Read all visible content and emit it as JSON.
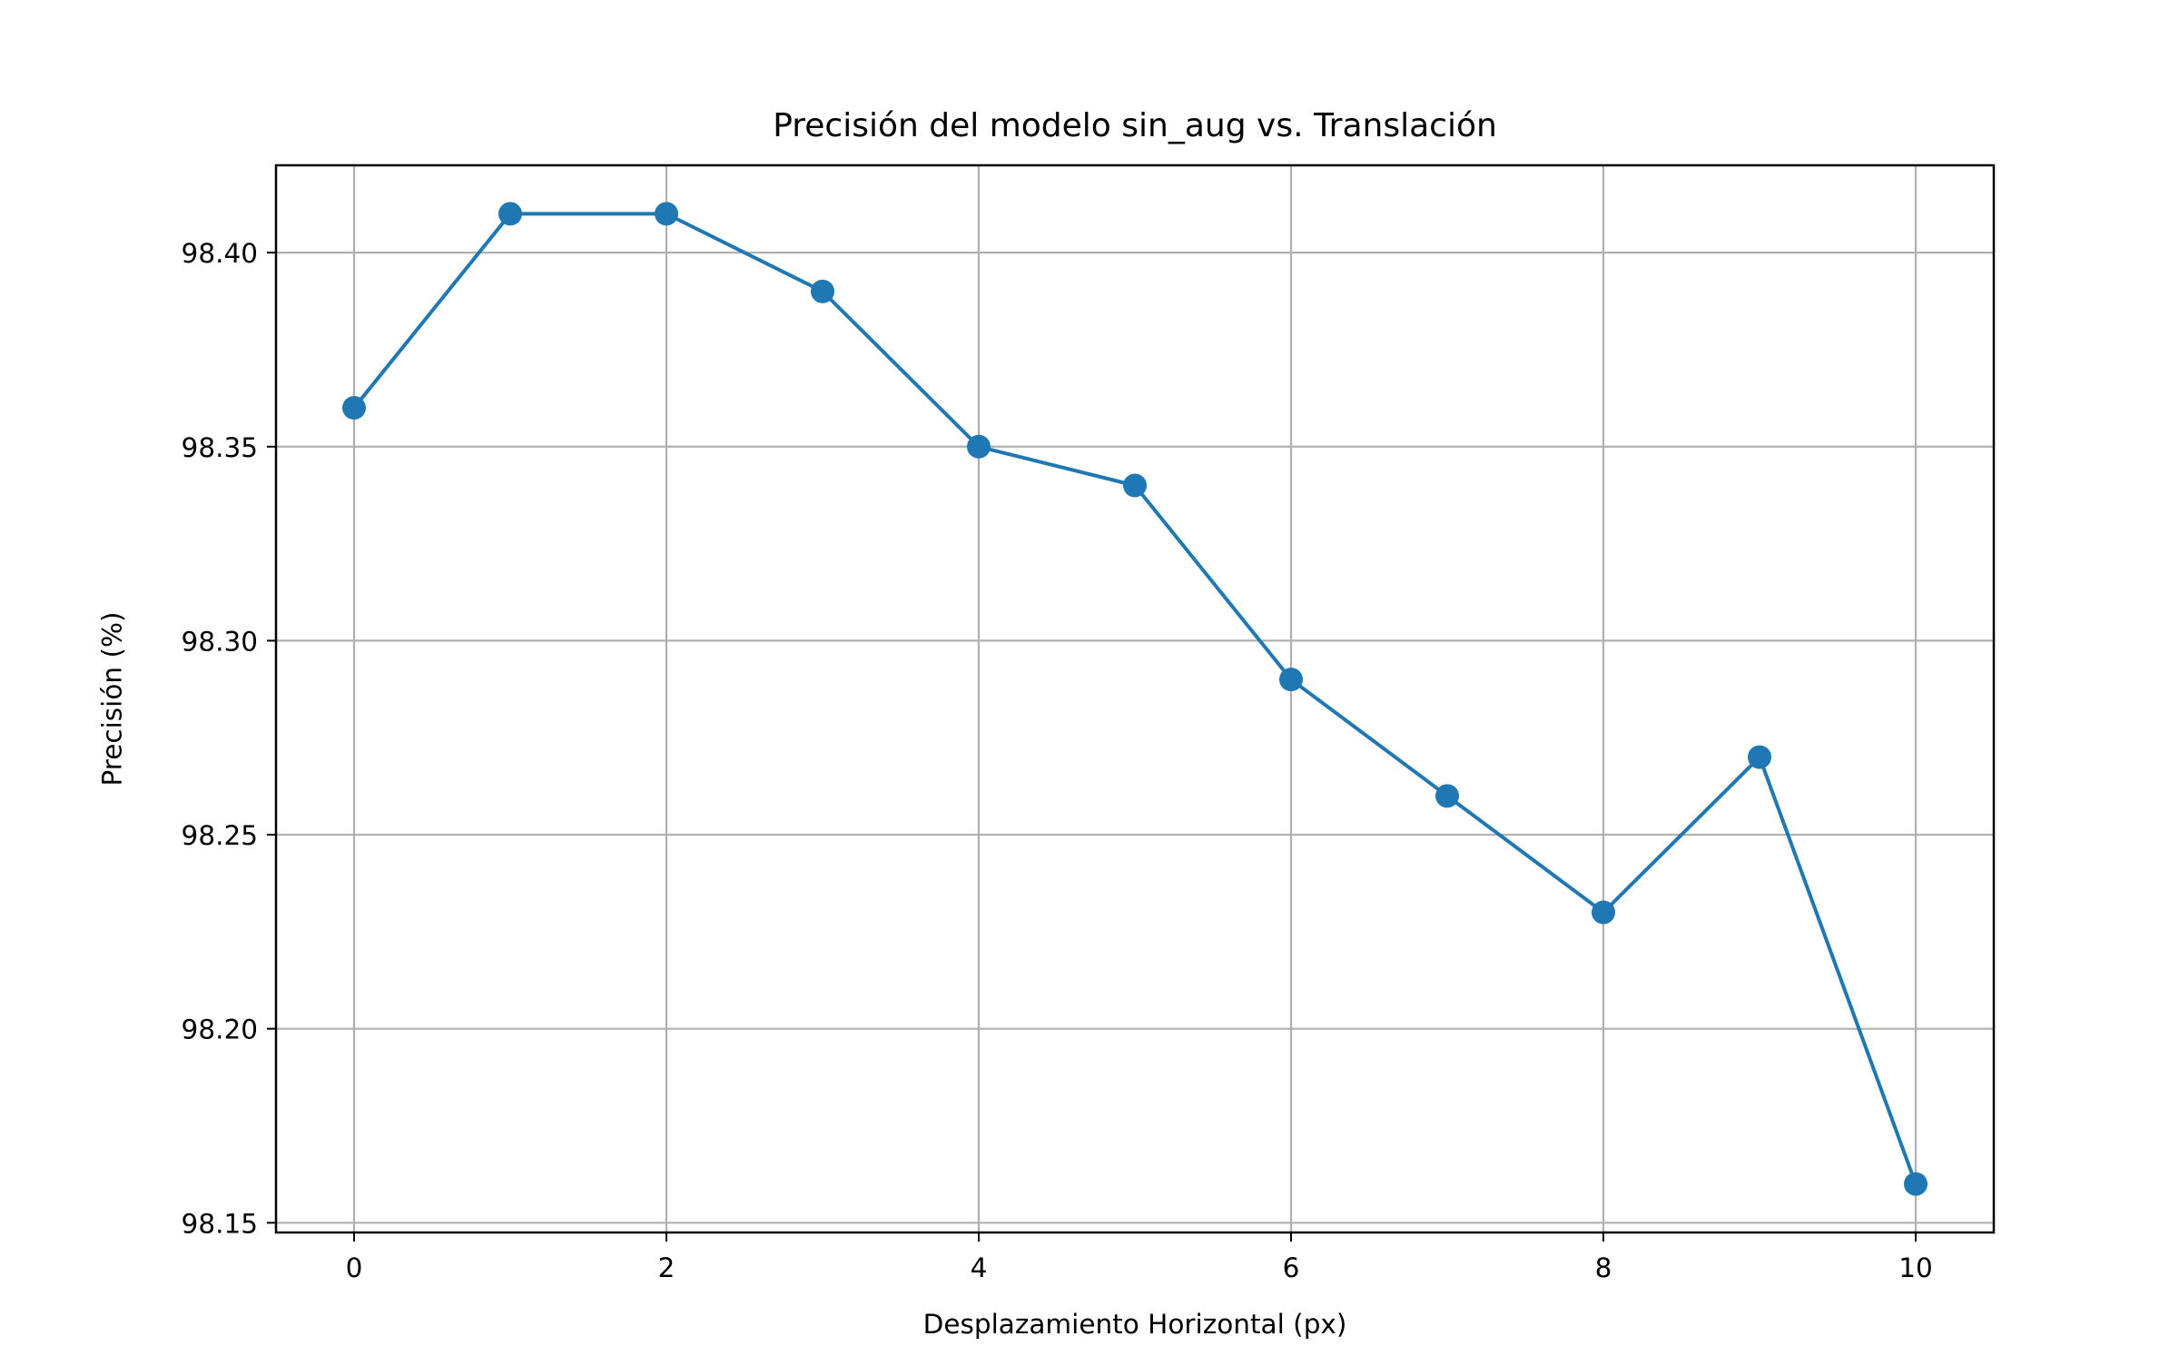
{
  "chart_data": {
    "type": "line",
    "title": "Precisión del modelo sin_aug vs. Translación",
    "xlabel": "Desplazamiento Horizontal (px)",
    "ylabel": "Precisión (%)",
    "x": [
      0,
      1,
      2,
      3,
      4,
      5,
      6,
      7,
      8,
      9,
      10
    ],
    "series": [
      {
        "values": [
          98.36,
          98.41,
          98.41,
          98.39,
          98.35,
          98.34,
          98.29,
          98.26,
          98.23,
          98.27,
          98.16
        ],
        "color": "#1f77b4",
        "marker": "circle"
      }
    ],
    "xticks": [
      0,
      2,
      4,
      6,
      8,
      10
    ],
    "xtick_labels": [
      "0",
      "2",
      "4",
      "6",
      "8",
      "10"
    ],
    "yticks": [
      98.15,
      98.2,
      98.25,
      98.3,
      98.35,
      98.4
    ],
    "ytick_labels": [
      "98.15",
      "98.20",
      "98.25",
      "98.30",
      "98.35",
      "98.40"
    ],
    "xlim": [
      -0.5,
      10.5
    ],
    "ylim": [
      98.1475,
      98.4225
    ],
    "grid": true,
    "legend": false
  }
}
